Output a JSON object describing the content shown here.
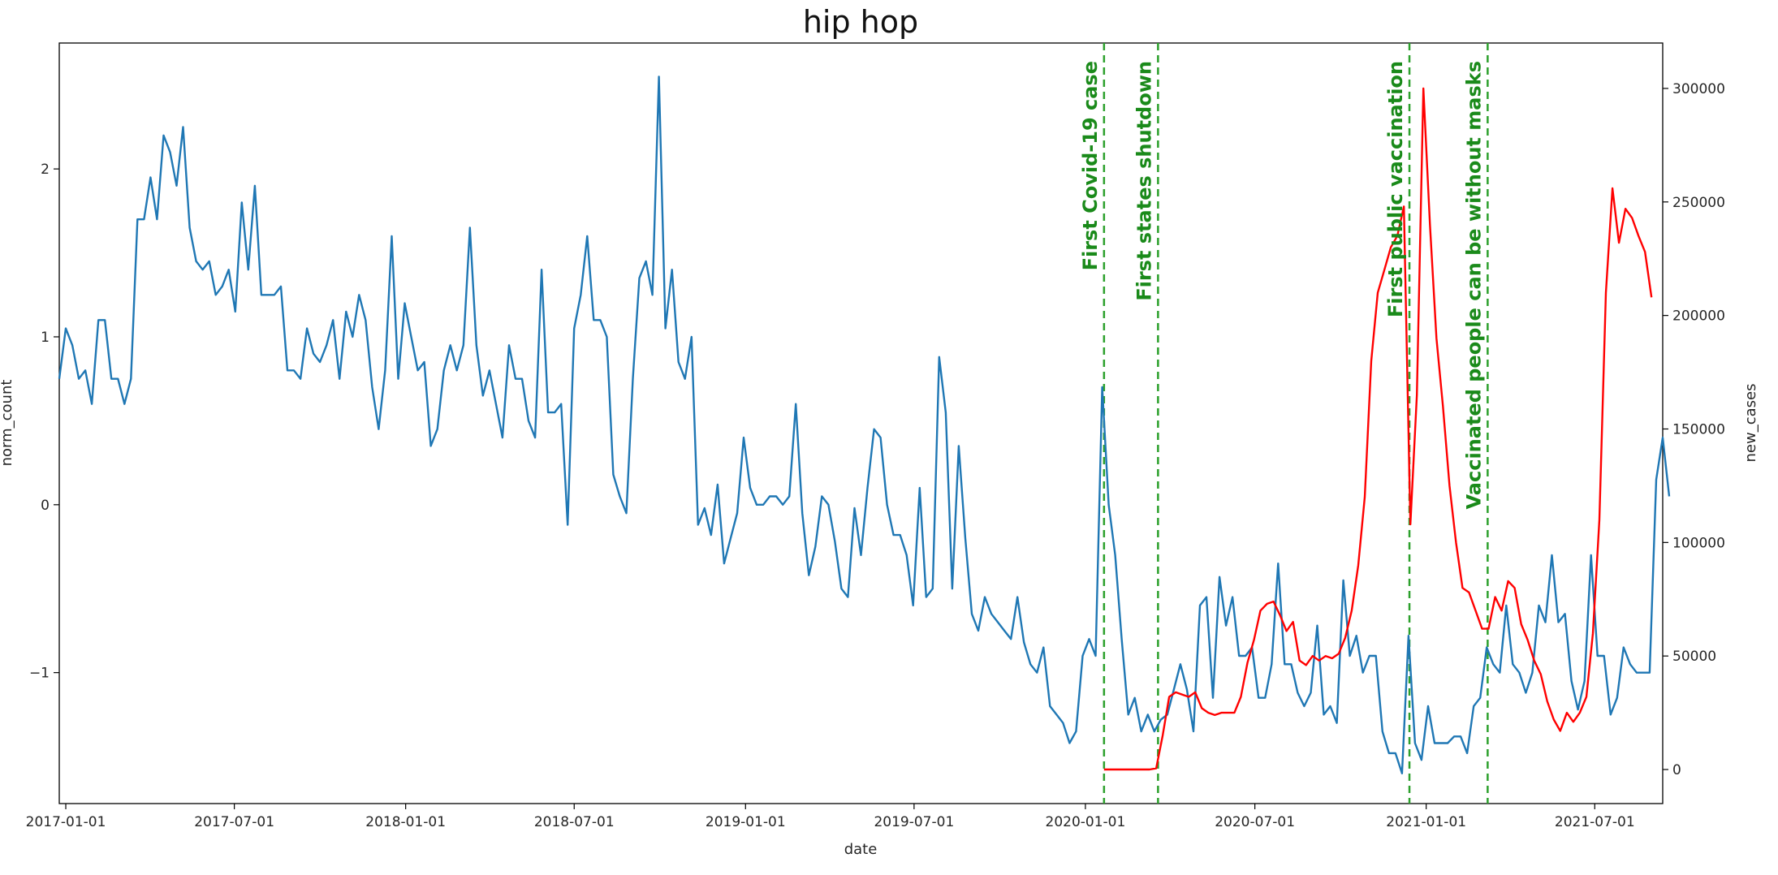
{
  "chart_data": {
    "type": "line",
    "title": "hip hop",
    "xlabel": "date",
    "ylabel": "norm_count",
    "y2label": "new_cases",
    "x_range": [
      "2016-12-25",
      "2021-09-12"
    ],
    "ylim": [
      -1.78,
      2.75
    ],
    "y2lim": [
      -15000,
      320000
    ],
    "x_ticks": [
      "2017-01-01",
      "2017-07-01",
      "2018-01-01",
      "2018-07-01",
      "2019-01-01",
      "2019-07-01",
      "2020-01-01",
      "2020-07-01",
      "2021-01-01",
      "2021-07-01"
    ],
    "y_ticks": [
      -1,
      0,
      1,
      2
    ],
    "y_tick_labels": [
      "−1",
      "0",
      "1",
      "2"
    ],
    "y2_ticks": [
      0,
      50000,
      100000,
      150000,
      200000,
      250000,
      300000
    ],
    "grid": false,
    "colors": {
      "norm_count": "#1f77b4",
      "new_cases": "#ff0000",
      "events": "#2ca02c",
      "event_text": "#1a8a1a"
    },
    "events": [
      {
        "date": "2020-01-21",
        "label": "First Covid-19 case"
      },
      {
        "date": "2020-03-19",
        "label": "First states shutdown"
      },
      {
        "date": "2020-12-14",
        "label": "First public vaccination"
      },
      {
        "date": "2021-03-08",
        "label": "Vaccinated people can be without masks"
      }
    ],
    "series": [
      {
        "key": "norm_count",
        "axis": "left",
        "start": "2016-12-25",
        "step_days": 7,
        "values": [
          0.75,
          1.05,
          0.95,
          0.75,
          0.8,
          0.6,
          1.1,
          1.1,
          0.75,
          0.75,
          0.6,
          0.75,
          1.7,
          1.7,
          1.95,
          1.7,
          2.2,
          2.1,
          1.9,
          2.25,
          1.65,
          1.45,
          1.4,
          1.45,
          1.25,
          1.3,
          1.4,
          1.15,
          1.8,
          1.4,
          1.9,
          1.25,
          1.25,
          1.25,
          1.3,
          0.8,
          0.8,
          0.75,
          1.05,
          0.9,
          0.85,
          0.95,
          1.1,
          0.75,
          1.15,
          1.0,
          1.25,
          1.1,
          0.7,
          0.45,
          0.8,
          1.6,
          0.75,
          1.2,
          1.0,
          0.8,
          0.85,
          0.35,
          0.45,
          0.8,
          0.95,
          0.8,
          0.95,
          1.65,
          0.95,
          0.65,
          0.8,
          0.6,
          0.4,
          0.95,
          0.75,
          0.75,
          0.5,
          0.4,
          1.4,
          0.55,
          0.55,
          0.6,
          -0.12,
          1.05,
          1.25,
          1.6,
          1.1,
          1.1,
          1.0,
          0.18,
          0.05,
          -0.05,
          0.75,
          1.35,
          1.45,
          1.25,
          2.55,
          1.05,
          1.4,
          0.85,
          0.75,
          1.0,
          -0.12,
          -0.02,
          -0.18,
          0.12,
          -0.35,
          -0.2,
          -0.05,
          0.4,
          0.1,
          0.0,
          0.0,
          0.05,
          0.05,
          0.0,
          0.05,
          0.6,
          -0.05,
          -0.42,
          -0.25,
          0.05,
          0.0,
          -0.22,
          -0.5,
          -0.55,
          -0.02,
          -0.3,
          0.1,
          0.45,
          0.4,
          0.0,
          -0.18,
          -0.18,
          -0.3,
          -0.6,
          0.1,
          -0.55,
          -0.5,
          0.88,
          0.55,
          -0.5,
          0.35,
          -0.2,
          -0.65,
          -0.75,
          -0.55,
          -0.65,
          -0.7,
          -0.75,
          -0.8,
          -0.55,
          -0.82,
          -0.95,
          -1.0,
          -0.85,
          -1.2,
          -1.25,
          -1.3,
          -1.42,
          -1.35,
          -0.9,
          -0.8,
          -0.9,
          0.7,
          0.0,
          -0.3,
          -0.8,
          -1.25,
          -1.15,
          -1.35,
          -1.25,
          -1.35,
          -1.28,
          -1.25,
          -1.1,
          -0.95,
          -1.1,
          -1.35,
          -0.6,
          -0.55,
          -1.15,
          -0.43,
          -0.72,
          -0.55,
          -0.9,
          -0.9,
          -0.85,
          -1.15,
          -1.15,
          -0.95,
          -0.35,
          -0.95,
          -0.95,
          -1.12,
          -1.2,
          -1.12,
          -0.72,
          -1.25,
          -1.2,
          -1.3,
          -0.45,
          -0.9,
          -0.78,
          -1.0,
          -0.9,
          -0.9,
          -1.35,
          -1.48,
          -1.48,
          -1.6,
          -0.78,
          -1.42,
          -1.52,
          -1.2,
          -1.42,
          -1.42,
          -1.42,
          -1.38,
          -1.38,
          -1.48,
          -1.2,
          -1.15,
          -0.85,
          -0.95,
          -1.0,
          -0.6,
          -0.95,
          -1.0,
          -1.12,
          -1.0,
          -0.6,
          -0.7,
          -0.3,
          -0.7,
          -0.65,
          -1.05,
          -1.22,
          -1.05,
          -0.3,
          -0.9,
          -0.9,
          -1.25,
          -1.15,
          -0.85,
          -0.95,
          -1.0,
          -1.0,
          -1.0,
          0.15,
          0.4,
          0.05
        ]
      },
      {
        "key": "new_cases",
        "axis": "right",
        "start": "2020-01-21",
        "step_days": 7,
        "values": [
          0,
          0,
          0,
          0,
          0,
          0,
          0,
          0,
          500,
          15000,
          32000,
          34000,
          33000,
          32000,
          34000,
          27000,
          25000,
          24000,
          25000,
          25000,
          25000,
          32000,
          47000,
          57000,
          70000,
          73000,
          74000,
          68000,
          61000,
          65000,
          48000,
          46000,
          50000,
          48000,
          50000,
          49000,
          51000,
          58000,
          70000,
          90000,
          120000,
          180000,
          210000,
          220000,
          230000,
          235000,
          248000,
          108000,
          165000,
          300000,
          240000,
          190000,
          160000,
          125000,
          100000,
          80000,
          78000,
          70000,
          62000,
          62000,
          76000,
          70000,
          83000,
          80000,
          64000,
          57000,
          48000,
          42000,
          30000,
          22000,
          17000,
          25000,
          21000,
          25000,
          32000,
          60000,
          110000,
          210000,
          256000,
          232000,
          247000,
          243000,
          235000,
          228000,
          208000
        ]
      }
    ]
  }
}
